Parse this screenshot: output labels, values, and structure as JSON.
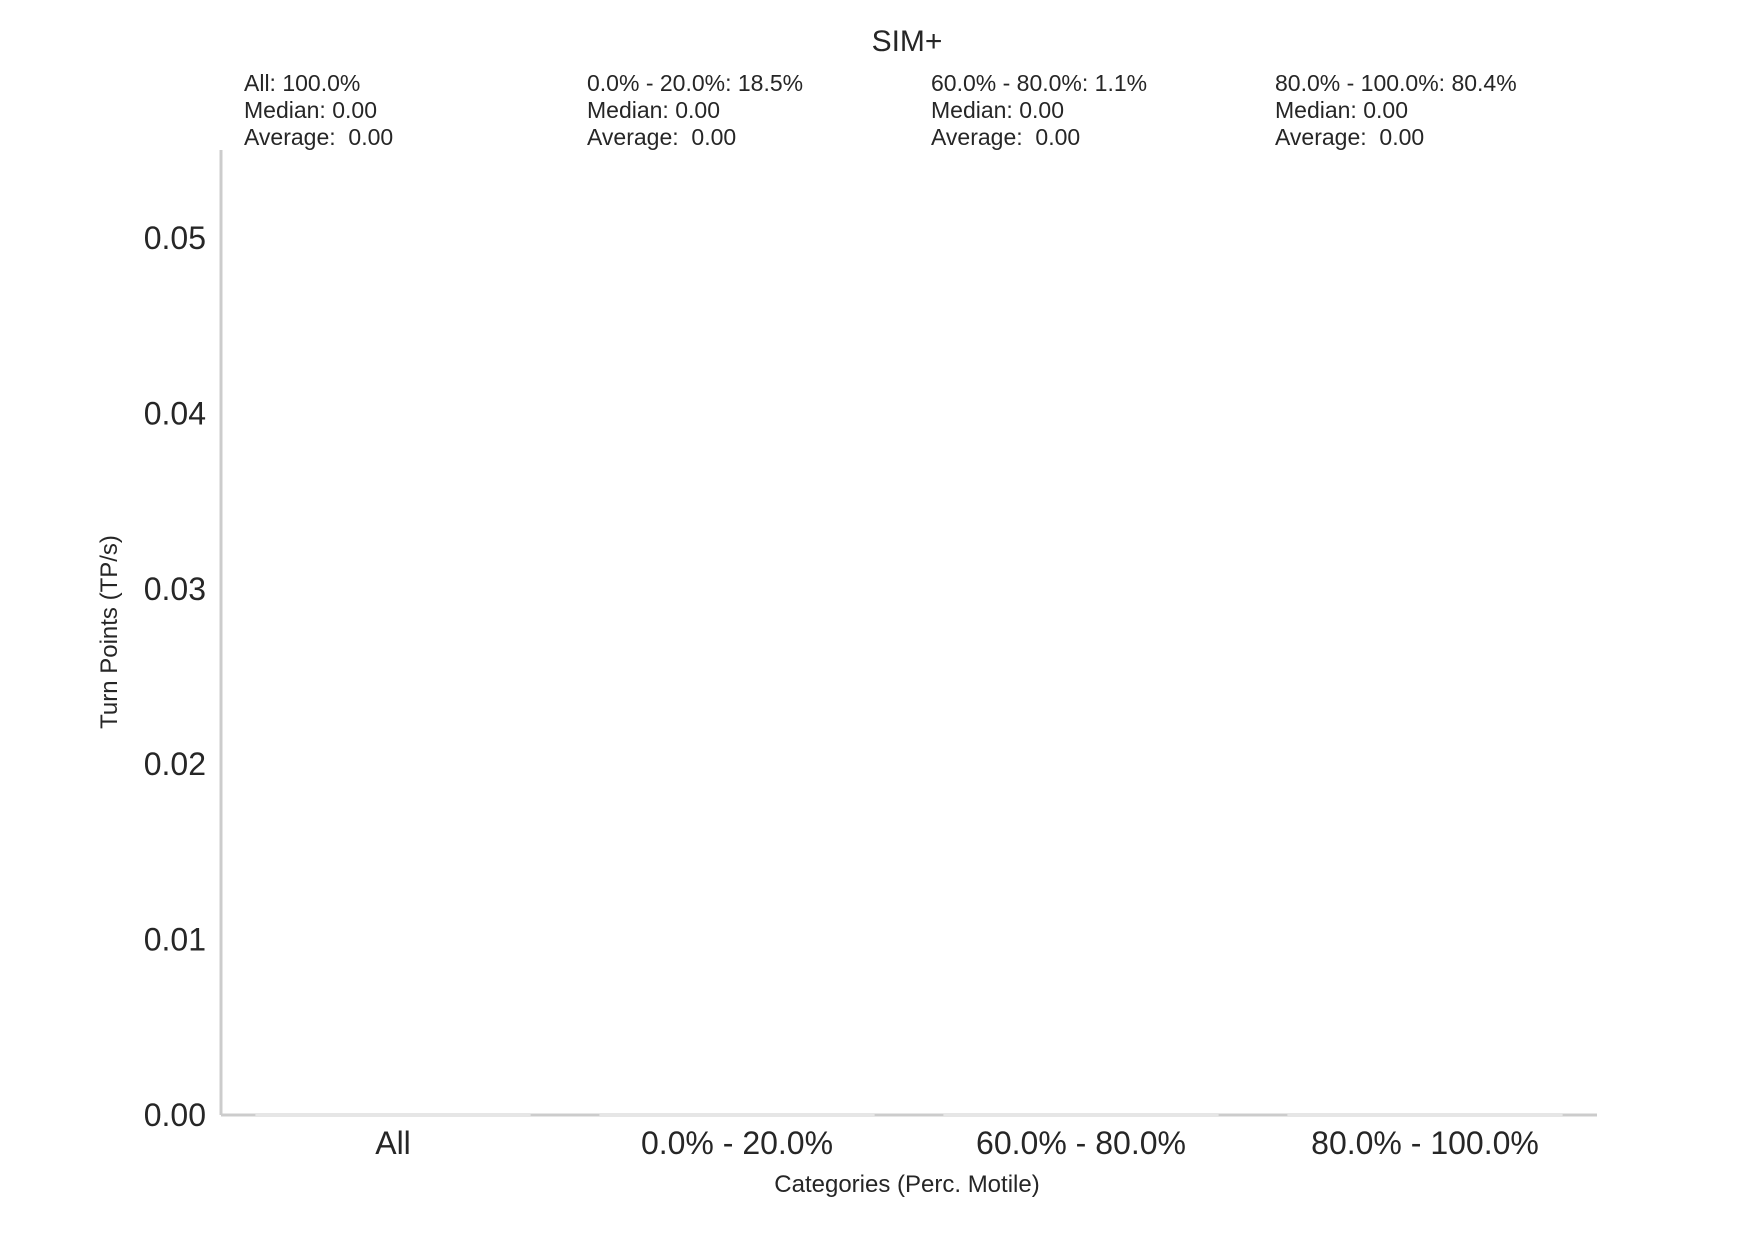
{
  "chart_data": {
    "type": "box",
    "title": "SIM+",
    "xlabel": "Categories (Perc. Motile)",
    "ylabel": "Turn Points (TP/s)",
    "ylim": [
      0,
      0.055
    ],
    "yticks": [
      0.0,
      0.01,
      0.02,
      0.03,
      0.04,
      0.05
    ],
    "ytick_labels": [
      "0.00",
      "0.01",
      "0.02",
      "0.03",
      "0.04",
      "0.05"
    ],
    "grid": false,
    "categories": [
      "All",
      "0.0% - 20.0%",
      "60.0% - 80.0%",
      "80.0% - 100.0%"
    ],
    "values": [
      0,
      0,
      0,
      0
    ],
    "annotations": [
      {
        "category": "All",
        "lines": [
          "All: 100.0%",
          "Median: 0.00",
          "Average:  0.00"
        ]
      },
      {
        "category": "0.0% - 20.0%",
        "lines": [
          "0.0% - 20.0%: 18.5%",
          "Median: 0.00",
          "Average:  0.00"
        ]
      },
      {
        "category": "60.0% - 80.0%",
        "lines": [
          "60.0% - 80.0%: 1.1%",
          "Median: 0.00",
          "Average:  0.00"
        ]
      },
      {
        "category": "80.0% - 100.0%",
        "lines": [
          "80.0% - 100.0%: 80.4%",
          "Median: 0.00",
          "Average:  0.00"
        ]
      }
    ],
    "colors": {
      "axis": "#cccccc",
      "text": "#262626",
      "background": "#ffffff"
    }
  }
}
